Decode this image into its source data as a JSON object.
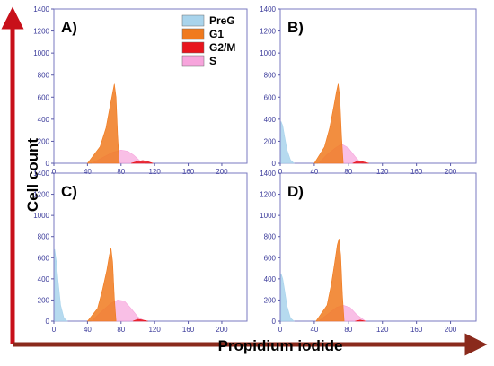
{
  "chart_data": {
    "type": "area",
    "title": "",
    "xlabel": "Propidium iodide",
    "ylabel": "Cell count",
    "xlim": [
      0,
      230
    ],
    "ylim": [
      0,
      1400
    ],
    "xticks": [
      "0",
      "40",
      "80",
      "120",
      "160",
      "200"
    ],
    "yticks": [
      "0",
      "200",
      "400",
      "600",
      "800",
      "1000",
      "1200",
      "1400"
    ],
    "legend_position": "top-right of panel A",
    "legend": [
      {
        "name": "PreG",
        "color": "#a9d4ec"
      },
      {
        "name": "G1",
        "color": "#f07a1e"
      },
      {
        "name": "G2/M",
        "color": "#e8141c"
      },
      {
        "name": "S",
        "color": "#f7a4dc"
      }
    ],
    "panels": [
      {
        "label": "A)",
        "series": [
          {
            "name": "PreG",
            "x": [],
            "y": []
          },
          {
            "name": "G1",
            "x": [
              40,
              55,
              62,
              67,
              70,
              72,
              74,
              76,
              78
            ],
            "y": [
              0,
              150,
              320,
              520,
              640,
              720,
              600,
              250,
              0
            ]
          },
          {
            "name": "S",
            "x": [
              45,
              60,
              70,
              80,
              88,
              95,
              102,
              108
            ],
            "y": [
              0,
              60,
              100,
              120,
              110,
              75,
              25,
              0
            ]
          },
          {
            "name": "G2/M",
            "x": [
              92,
              100,
              106,
              112,
              118
            ],
            "y": [
              0,
              18,
              25,
              15,
              0
            ]
          }
        ]
      },
      {
        "label": "B)",
        "series": [
          {
            "name": "PreG",
            "x": [
              1,
              3,
              5,
              8,
              12,
              16
            ],
            "y": [
              380,
              340,
              250,
              120,
              30,
              0
            ]
          },
          {
            "name": "G1",
            "x": [
              40,
              52,
              58,
              63,
              66,
              68,
              70,
              72,
              74
            ],
            "y": [
              0,
              150,
              320,
              520,
              650,
              720,
              600,
              250,
              0
            ]
          },
          {
            "name": "S",
            "x": [
              45,
              55,
              65,
              72,
              80,
              88,
              95
            ],
            "y": [
              0,
              80,
              140,
              175,
              140,
              60,
              0
            ]
          },
          {
            "name": "G2/M",
            "x": [
              85,
              92,
              98,
              104
            ],
            "y": [
              0,
              22,
              12,
              0
            ]
          }
        ]
      },
      {
        "label": "C)",
        "series": [
          {
            "name": "PreG",
            "x": [
              1,
              3,
              5,
              8,
              12,
              16
            ],
            "y": [
              680,
              560,
              380,
              150,
              30,
              0
            ]
          },
          {
            "name": "G1",
            "x": [
              40,
              52,
              58,
              63,
              66,
              68,
              70,
              72,
              74
            ],
            "y": [
              0,
              120,
              300,
              480,
              620,
              690,
              560,
              220,
              0
            ]
          },
          {
            "name": "S",
            "x": [
              45,
              58,
              68,
              76,
              84,
              92,
              100,
              108
            ],
            "y": [
              0,
              100,
              170,
              200,
              190,
              120,
              40,
              0
            ]
          },
          {
            "name": "G2/M",
            "x": [
              94,
              100,
              106,
              112
            ],
            "y": [
              0,
              18,
              10,
              0
            ]
          }
        ]
      },
      {
        "label": "D)",
        "series": [
          {
            "name": "PreG",
            "x": [
              1,
              3,
              5,
              8,
              12,
              16
            ],
            "y": [
              450,
              400,
              300,
              140,
              30,
              0
            ]
          },
          {
            "name": "G1",
            "x": [
              42,
              55,
              60,
              64,
              67,
              69,
              71,
              73,
              75
            ],
            "y": [
              0,
              150,
              350,
              560,
              720,
              780,
              620,
              250,
              0
            ]
          },
          {
            "name": "S",
            "x": [
              45,
              58,
              66,
              74,
              82,
              90,
              100
            ],
            "y": [
              0,
              80,
              130,
              150,
              130,
              60,
              0
            ]
          },
          {
            "name": "G2/M",
            "x": [
              88,
              94,
              100
            ],
            "y": [
              0,
              10,
              0
            ]
          }
        ]
      }
    ]
  }
}
